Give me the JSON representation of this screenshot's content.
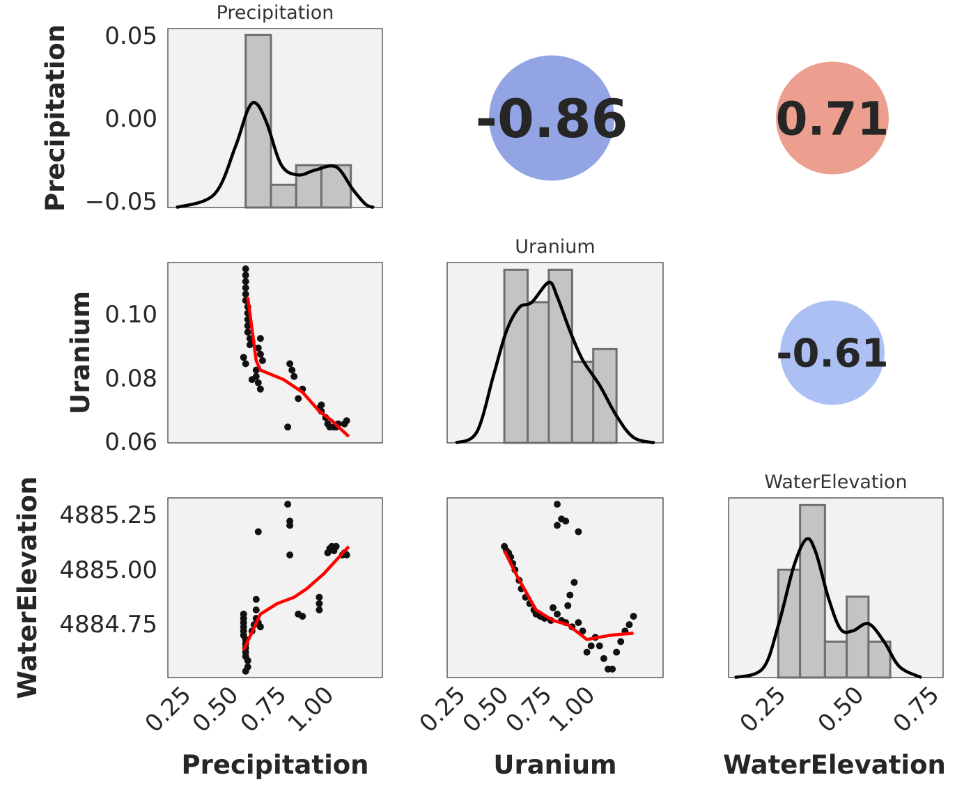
{
  "chart_data": {
    "type": "pairplot",
    "variables": [
      "Precipitation",
      "Uranium",
      "WaterElevation"
    ],
    "diag_titles": [
      "Precipitation",
      "Uranium",
      "WaterElevation"
    ],
    "xlabels": [
      "Precipitation",
      "Uranium",
      "WaterElevation"
    ],
    "ylabels": [
      "Precipitation",
      "Uranium",
      "WaterElevation"
    ],
    "x_ticks": {
      "Precipitation": [
        "0.25",
        "0.50",
        "0.75",
        "1.00"
      ],
      "Uranium": [
        "0.25",
        "0.50",
        "0.75",
        "1.00"
      ],
      "WaterElevation": [
        "0.25",
        "0.50",
        "0.75"
      ]
    },
    "y_ticks": {
      "Precipitation": [
        "0.05",
        "0.00",
        "−0.05"
      ],
      "Uranium": [
        "0.10",
        "0.08",
        "0.06"
      ],
      "WaterElevation": [
        "4885.25",
        "4885.00",
        "4884.75"
      ]
    },
    "grid": false,
    "correlations": [
      {
        "pair": [
          "Precipitation",
          "Uranium"
        ],
        "value": "-0.86",
        "color": "#8c9fe3"
      },
      {
        "pair": [
          "Precipitation",
          "WaterElevation"
        ],
        "value": "0.71",
        "color": "#eb9a88"
      },
      {
        "pair": [
          "Uranium",
          "WaterElevation"
        ],
        "value": "-0.61",
        "color": "#a8bdf2"
      }
    ],
    "histograms": [
      {
        "variable": "Precipitation",
        "xlim": [
          0.08,
          1.1
        ],
        "ylim": [
          -0.055,
          0.055
        ],
        "bins": [
          0.45,
          0.57,
          0.69,
          0.81,
          0.95
        ],
        "heights": [
          0.051,
          -0.041,
          -0.029,
          -0.029
        ],
        "kde_x": [
          0.12,
          0.3,
          0.4,
          0.46,
          0.5,
          0.55,
          0.62,
          0.7,
          0.78,
          0.88,
          0.96,
          1.02,
          1.06
        ],
        "kde_y": [
          -0.055,
          -0.047,
          -0.018,
          0.005,
          0.009,
          -0.003,
          -0.029,
          -0.035,
          -0.032,
          -0.03,
          -0.044,
          -0.053,
          -0.055
        ]
      },
      {
        "variable": "Uranium",
        "xlim": [
          0.08,
          1.1
        ],
        "ylim": [
          0,
          1
        ],
        "bins": [
          0.35,
          0.46,
          0.56,
          0.67,
          0.77,
          0.88
        ],
        "heights": [
          0.96,
          0.78,
          0.96,
          0.45,
          0.52
        ],
        "kde_x": [
          0.12,
          0.22,
          0.3,
          0.36,
          0.42,
          0.48,
          0.56,
          0.6,
          0.66,
          0.72,
          0.8,
          0.88,
          0.96,
          1.06
        ],
        "kde_y": [
          0.0,
          0.06,
          0.38,
          0.62,
          0.75,
          0.78,
          0.89,
          0.81,
          0.62,
          0.46,
          0.32,
          0.15,
          0.03,
          0.0
        ]
      },
      {
        "variable": "WaterElevation",
        "xlim": [
          0.05,
          0.74
        ],
        "ylim": [
          0,
          1
        ],
        "bins": [
          0.21,
          0.28,
          0.36,
          0.43,
          0.5,
          0.57
        ],
        "heights": [
          0.6,
          0.96,
          0.2,
          0.45,
          0.2
        ],
        "kde_x": [
          0.07,
          0.16,
          0.21,
          0.26,
          0.3,
          0.33,
          0.37,
          0.41,
          0.45,
          0.5,
          0.55,
          0.6,
          0.67
        ],
        "kde_y": [
          0.0,
          0.05,
          0.29,
          0.62,
          0.77,
          0.7,
          0.45,
          0.27,
          0.26,
          0.3,
          0.2,
          0.06,
          0.0
        ]
      }
    ],
    "scatters": [
      {
        "x_var": "Precipitation",
        "y_var": "Uranium",
        "xlim": [
          0.08,
          1.1
        ],
        "ylim": [
          0.06,
          0.117
        ],
        "points": [
          [
            0.45,
            0.115
          ],
          [
            0.45,
            0.113
          ],
          [
            0.45,
            0.111
          ],
          [
            0.45,
            0.109
          ],
          [
            0.45,
            0.107
          ],
          [
            0.45,
            0.105
          ],
          [
            0.46,
            0.103
          ],
          [
            0.46,
            0.101
          ],
          [
            0.46,
            0.099
          ],
          [
            0.46,
            0.097
          ],
          [
            0.46,
            0.095
          ],
          [
            0.47,
            0.093
          ],
          [
            0.48,
            0.092
          ],
          [
            0.44,
            0.087
          ],
          [
            0.45,
            0.085
          ],
          [
            0.5,
            0.083
          ],
          [
            0.5,
            0.081
          ],
          [
            0.51,
            0.079
          ],
          [
            0.52,
            0.077
          ],
          [
            0.51,
            0.09
          ],
          [
            0.52,
            0.093
          ],
          [
            0.52,
            0.088
          ],
          [
            0.53,
            0.086
          ],
          [
            0.48,
            0.08
          ],
          [
            0.47,
            0.091
          ],
          [
            0.66,
            0.085
          ],
          [
            0.67,
            0.083
          ],
          [
            0.68,
            0.081
          ],
          [
            0.65,
            0.065
          ],
          [
            0.7,
            0.074
          ],
          [
            0.72,
            0.077
          ],
          [
            0.8,
            0.071
          ],
          [
            0.81,
            0.072
          ],
          [
            0.81,
            0.07
          ],
          [
            0.83,
            0.068
          ],
          [
            0.84,
            0.066
          ],
          [
            0.85,
            0.065
          ],
          [
            0.87,
            0.065
          ],
          [
            0.88,
            0.065
          ],
          [
            0.89,
            0.066
          ],
          [
            0.92,
            0.066
          ],
          [
            0.93,
            0.067
          ]
        ],
        "trend_x": [
          0.46,
          0.5,
          0.52,
          0.63,
          0.72,
          0.8,
          0.86,
          0.94
        ],
        "trend_y": [
          0.106,
          0.086,
          0.083,
          0.08,
          0.076,
          0.07,
          0.067,
          0.062
        ]
      },
      {
        "x_var": "Precipitation",
        "y_var": "WaterElevation",
        "xlim": [
          0.08,
          1.1
        ],
        "ylim": [
          4884.48,
          4885.33
        ],
        "points": [
          [
            0.44,
            4884.78
          ],
          [
            0.44,
            4884.76
          ],
          [
            0.44,
            4884.74
          ],
          [
            0.44,
            4884.72
          ],
          [
            0.44,
            4884.7
          ],
          [
            0.44,
            4884.68
          ],
          [
            0.45,
            4884.66
          ],
          [
            0.45,
            4884.64
          ],
          [
            0.45,
            4884.62
          ],
          [
            0.45,
            4884.6
          ],
          [
            0.45,
            4884.58
          ],
          [
            0.46,
            4884.56
          ],
          [
            0.46,
            4884.53
          ],
          [
            0.45,
            4884.51
          ],
          [
            0.48,
            4884.7
          ],
          [
            0.49,
            4884.73
          ],
          [
            0.5,
            4884.76
          ],
          [
            0.5,
            4884.8
          ],
          [
            0.5,
            4884.85
          ],
          [
            0.51,
            4884.74
          ],
          [
            0.52,
            4884.72
          ],
          [
            0.51,
            4885.17
          ],
          [
            0.65,
            4885.3
          ],
          [
            0.66,
            4885.22
          ],
          [
            0.66,
            4885.2
          ],
          [
            0.66,
            4885.06
          ],
          [
            0.7,
            4884.78
          ],
          [
            0.72,
            4884.77
          ],
          [
            0.8,
            4884.86
          ],
          [
            0.8,
            4884.83
          ],
          [
            0.8,
            4884.8
          ],
          [
            0.84,
            4885.07
          ],
          [
            0.85,
            4885.09
          ],
          [
            0.86,
            4885.1
          ],
          [
            0.87,
            4885.08
          ],
          [
            0.88,
            4885.1
          ],
          [
            0.91,
            4885.06
          ],
          [
            0.92,
            4885.07
          ],
          [
            0.93,
            4885.06
          ]
        ],
        "trend_x": [
          0.44,
          0.52,
          0.6,
          0.68,
          0.74,
          0.82,
          0.94
        ],
        "trend_y": [
          4884.61,
          4884.78,
          4884.83,
          4884.86,
          4884.9,
          4884.97,
          4885.1
        ]
      },
      {
        "x_var": "Uranium",
        "y_var": "WaterElevation",
        "xlim": [
          0.08,
          1.1
        ],
        "ylim": [
          4884.48,
          4885.33
        ],
        "points": [
          [
            0.35,
            4885.1
          ],
          [
            0.36,
            4885.08
          ],
          [
            0.37,
            4885.07
          ],
          [
            0.38,
            4885.05
          ],
          [
            0.39,
            4885.02
          ],
          [
            0.4,
            4884.99
          ],
          [
            0.42,
            4884.94
          ],
          [
            0.43,
            4884.9
          ],
          [
            0.45,
            4884.86
          ],
          [
            0.47,
            4884.83
          ],
          [
            0.49,
            4884.8
          ],
          [
            0.5,
            4884.78
          ],
          [
            0.52,
            4884.77
          ],
          [
            0.54,
            4884.76
          ],
          [
            0.57,
            4884.75
          ],
          [
            0.58,
            4884.81
          ],
          [
            0.6,
            4884.78
          ],
          [
            0.62,
            4884.75
          ],
          [
            0.64,
            4884.74
          ],
          [
            0.67,
            4884.72
          ],
          [
            0.7,
            4884.74
          ],
          [
            0.72,
            4884.7
          ],
          [
            0.65,
            4884.82
          ],
          [
            0.66,
            4884.87
          ],
          [
            0.68,
            4884.93
          ],
          [
            0.6,
            4885.3
          ],
          [
            0.62,
            4885.23
          ],
          [
            0.64,
            4885.22
          ],
          [
            0.6,
            4885.2
          ],
          [
            0.7,
            4885.17
          ],
          [
            0.78,
            4884.67
          ],
          [
            0.8,
            4884.63
          ],
          [
            0.82,
            4884.57
          ],
          [
            0.84,
            4884.52
          ],
          [
            0.86,
            4884.52
          ],
          [
            0.74,
            4884.6
          ],
          [
            0.76,
            4884.63
          ],
          [
            0.88,
            4884.6
          ],
          [
            0.9,
            4884.65
          ],
          [
            0.92,
            4884.7
          ],
          [
            0.94,
            4884.73
          ],
          [
            0.96,
            4884.77
          ]
        ],
        "trend_x": [
          0.35,
          0.41,
          0.5,
          0.58,
          0.65,
          0.74,
          0.85,
          0.96
        ],
        "trend_y": [
          4885.08,
          4884.96,
          4884.8,
          4884.75,
          4884.73,
          4884.66,
          4884.68,
          4884.69
        ]
      }
    ]
  }
}
